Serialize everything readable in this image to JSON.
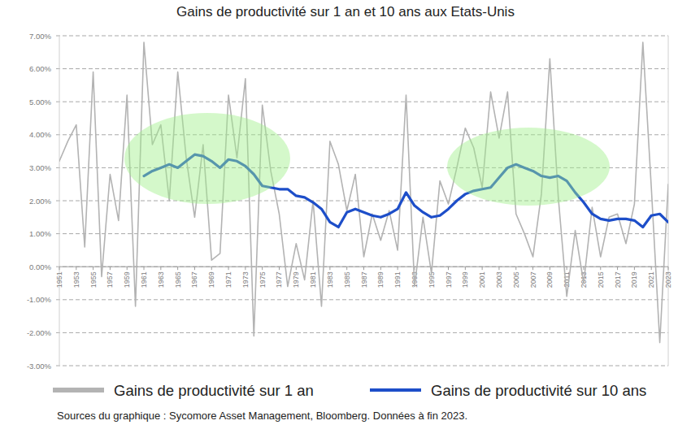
{
  "chart_data": {
    "type": "line",
    "title": "Gains de productivité sur 1 an et 10 ans aux Etats-Unis",
    "annotations": [
      "Sources du graphique : Sycomore Asset Management, Bloomberg. Données à fin 2023."
    ],
    "x": [
      1951,
      1952,
      1953,
      1954,
      1955,
      1956,
      1957,
      1958,
      1959,
      1960,
      1961,
      1962,
      1963,
      1964,
      1965,
      1966,
      1967,
      1968,
      1969,
      1970,
      1971,
      1972,
      1973,
      1974,
      1975,
      1976,
      1977,
      1978,
      1979,
      1980,
      1981,
      1982,
      1983,
      1984,
      1985,
      1986,
      1987,
      1988,
      1989,
      1990,
      1991,
      1992,
      1993,
      1994,
      1995,
      1996,
      1997,
      1998,
      1999,
      2000,
      2001,
      2002,
      2003,
      2004,
      2005,
      2006,
      2007,
      2008,
      2009,
      2010,
      2011,
      2012,
      2013,
      2014,
      2015,
      2016,
      2017,
      2018,
      2019,
      2020,
      2021,
      2022,
      2023
    ],
    "series": [
      {
        "name": "Gains de productivité sur 1 an",
        "color": "#b3b3b3",
        "values": [
          3.2,
          3.8,
          4.3,
          0.6,
          5.9,
          -0.3,
          2.8,
          1.4,
          5.2,
          -1.2,
          6.8,
          3.7,
          4.3,
          2.0,
          5.9,
          3.3,
          1.5,
          3.7,
          0.2,
          0.4,
          5.2,
          3.3,
          5.7,
          -2.1,
          4.9,
          2.9,
          1.6,
          -0.6,
          0.7,
          -0.4,
          2.0,
          -1.2,
          3.8,
          3.1,
          1.7,
          2.8,
          0.3,
          1.6,
          0.8,
          1.7,
          0.5,
          5.2,
          -0.6,
          1.5,
          -0.2,
          2.6,
          1.9,
          3.0,
          4.2,
          3.6,
          2.4,
          5.3,
          3.9,
          5.3,
          1.6,
          1.0,
          0.3,
          2.2,
          6.3,
          2.1,
          -0.9,
          1.1,
          -0.5,
          1.8,
          0.3,
          1.5,
          1.6,
          0.7,
          1.9,
          6.8,
          2.4,
          -2.3,
          2.5
        ]
      },
      {
        "name": "Gains de productivité sur 10 ans",
        "color": "#1d4ec9",
        "values": [
          null,
          null,
          null,
          null,
          null,
          null,
          null,
          null,
          null,
          null,
          2.75,
          2.9,
          3.0,
          3.1,
          3.0,
          3.2,
          3.4,
          3.35,
          3.2,
          3.0,
          3.25,
          3.2,
          3.05,
          2.8,
          2.45,
          2.4,
          2.35,
          2.35,
          2.15,
          2.1,
          1.95,
          1.75,
          1.35,
          1.2,
          1.65,
          1.75,
          1.65,
          1.55,
          1.5,
          1.6,
          1.75,
          2.25,
          1.85,
          1.65,
          1.5,
          1.55,
          1.75,
          2.0,
          2.2,
          2.3,
          2.35,
          2.4,
          2.7,
          3.0,
          3.1,
          3.0,
          2.9,
          2.75,
          2.7,
          2.75,
          2.6,
          2.25,
          1.95,
          1.6,
          1.45,
          1.4,
          1.45,
          1.45,
          1.4,
          1.2,
          1.55,
          1.6,
          1.35
        ]
      }
    ],
    "xlim": [
      1951,
      2023
    ],
    "xticks": [
      1951,
      1953,
      1955,
      1957,
      1959,
      1961,
      1963,
      1965,
      1967,
      1969,
      1971,
      1973,
      1975,
      1977,
      1979,
      1981,
      1983,
      1985,
      1987,
      1989,
      1991,
      1993,
      1995,
      1997,
      1999,
      2001,
      2003,
      2005,
      2007,
      2009,
      2011,
      2013,
      2015,
      2017,
      2019,
      2021,
      2023
    ],
    "ylim": [
      -3,
      7
    ],
    "yticks": [
      {
        "value": -3,
        "label": "-3.00%"
      },
      {
        "value": -2,
        "label": "-2.00%"
      },
      {
        "value": -1,
        "label": "-1.00%"
      },
      {
        "value": 0,
        "label": "0.00%"
      },
      {
        "value": 1,
        "label": "1.00%"
      },
      {
        "value": 2,
        "label": "2.00%"
      },
      {
        "value": 3,
        "label": "3.00%"
      },
      {
        "value": 4,
        "label": "4.00%"
      },
      {
        "value": 5,
        "label": "5.00%"
      },
      {
        "value": 6,
        "label": "6.00%"
      },
      {
        "value": 7,
        "label": "7.00%"
      }
    ],
    "grid": true,
    "legend": "bottom"
  }
}
